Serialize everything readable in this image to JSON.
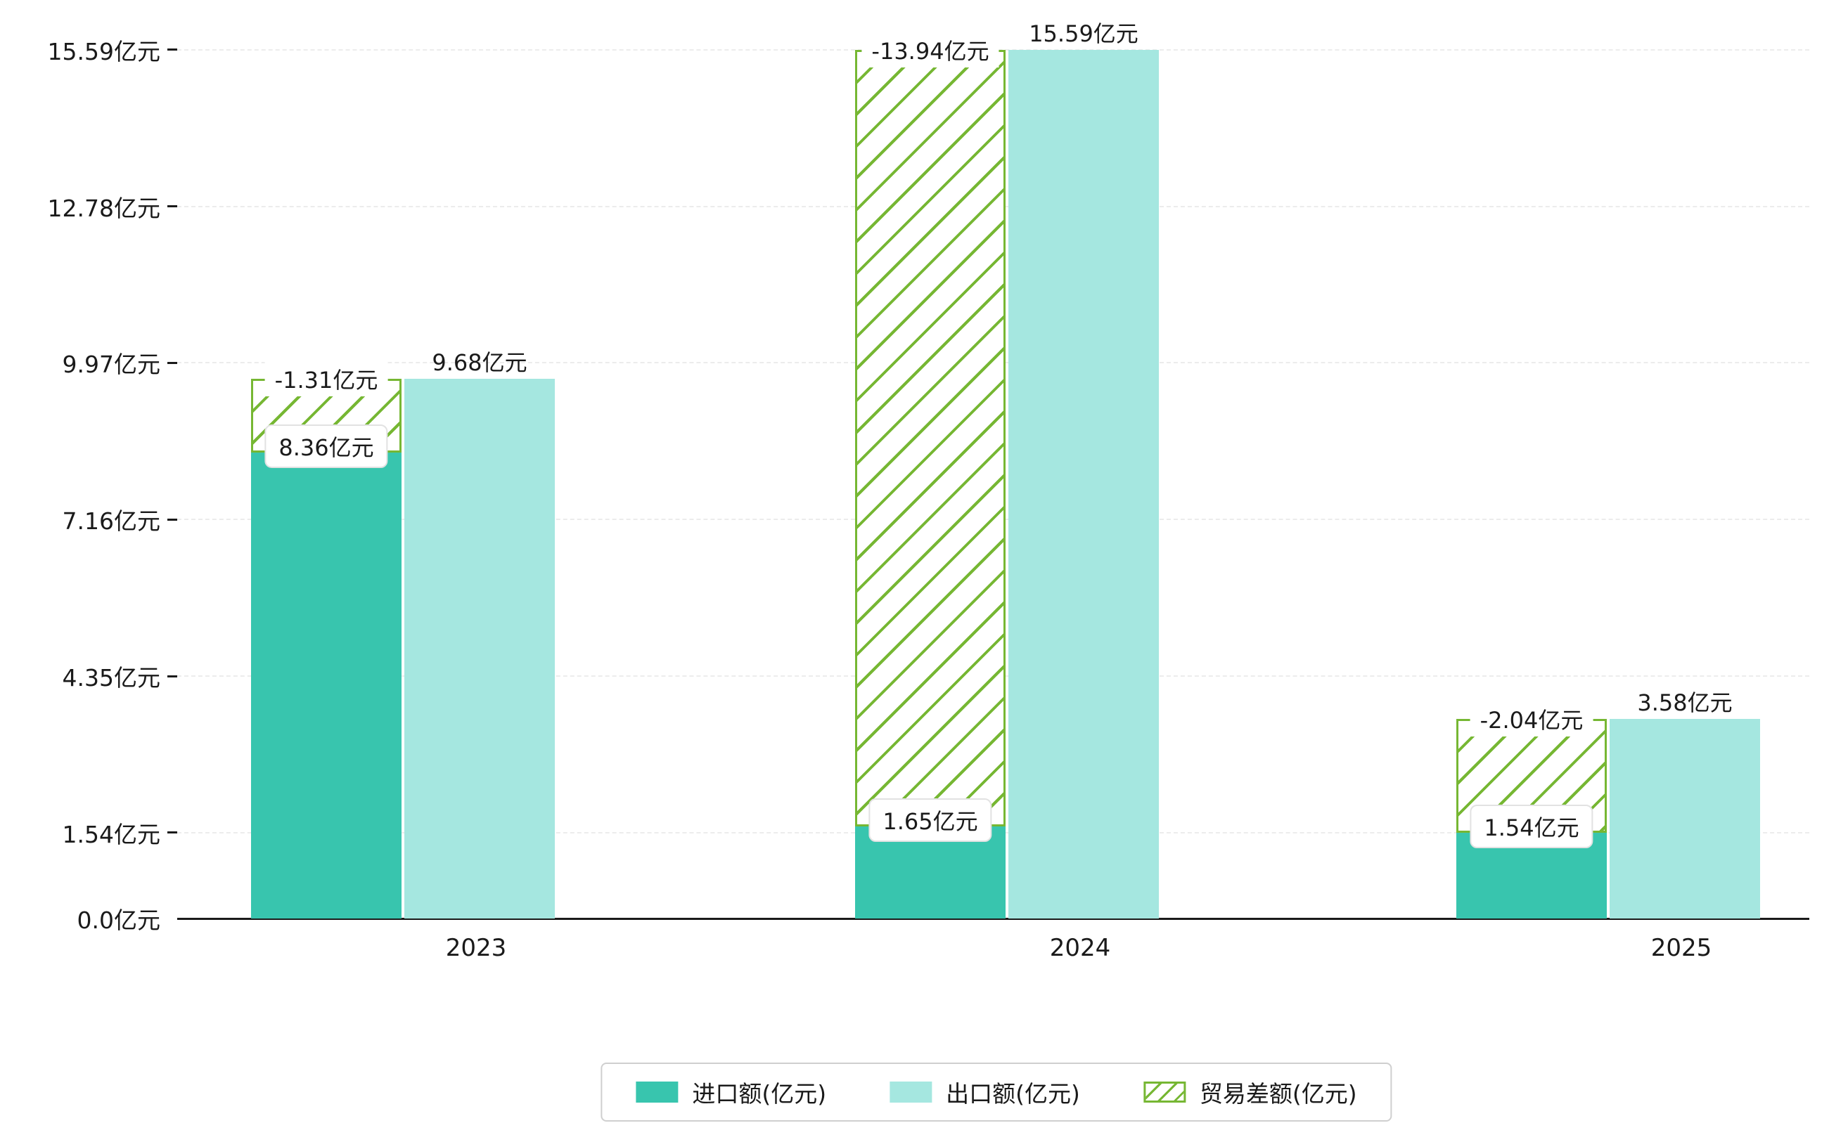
{
  "chart_data": {
    "type": "bar",
    "title": "",
    "xlabel": "",
    "ylabel": "",
    "categories": [
      "2023",
      "2024",
      "2025"
    ],
    "series": [
      {
        "name": "进口额(亿元)",
        "values": [
          8.36,
          1.65,
          1.54
        ],
        "labels": [
          "8.36亿元",
          "1.65亿元",
          "1.54亿元"
        ],
        "color": "#38c5ae",
        "style": "solid"
      },
      {
        "name": "出口额(亿元)",
        "values": [
          9.68,
          15.59,
          3.58
        ],
        "labels": [
          "9.68亿元",
          "15.59亿元",
          "3.58亿元"
        ],
        "color": "#a5e7e0",
        "style": "solid"
      },
      {
        "name": "贸易差额(亿元)",
        "values": [
          -1.31,
          -13.94,
          -2.04
        ],
        "labels": [
          "-1.31亿元",
          "-13.94亿元",
          "-2.04亿元"
        ],
        "color": "#76b733",
        "style": "hatched",
        "note": "drawn as hatched span from import value up to export value on the import bar column"
      }
    ],
    "y_ticks": [
      {
        "value": 0,
        "label": "0.0亿元"
      },
      {
        "value": 1.54,
        "label": "1.54亿元"
      },
      {
        "value": 4.35,
        "label": "4.35亿元"
      },
      {
        "value": 7.16,
        "label": "7.16亿元"
      },
      {
        "value": 9.97,
        "label": "9.97亿元"
      },
      {
        "value": 12.78,
        "label": "12.78亿元"
      },
      {
        "value": 15.59,
        "label": "15.59亿元"
      }
    ],
    "ylim": [
      0,
      15.59
    ],
    "grid": true,
    "legend_position": "bottom"
  },
  "legend": {
    "items": [
      {
        "label": "进口额(亿元)",
        "swatch": "import"
      },
      {
        "label": "出口额(亿元)",
        "swatch": "export"
      },
      {
        "label": "贸易差额(亿元)",
        "swatch": "balance-hatched"
      }
    ]
  },
  "colors": {
    "import": "#38c5ae",
    "export": "#a5e7e0",
    "balance": "#76b733",
    "axis": "#1a1a1a",
    "gridline": "#ececec"
  }
}
